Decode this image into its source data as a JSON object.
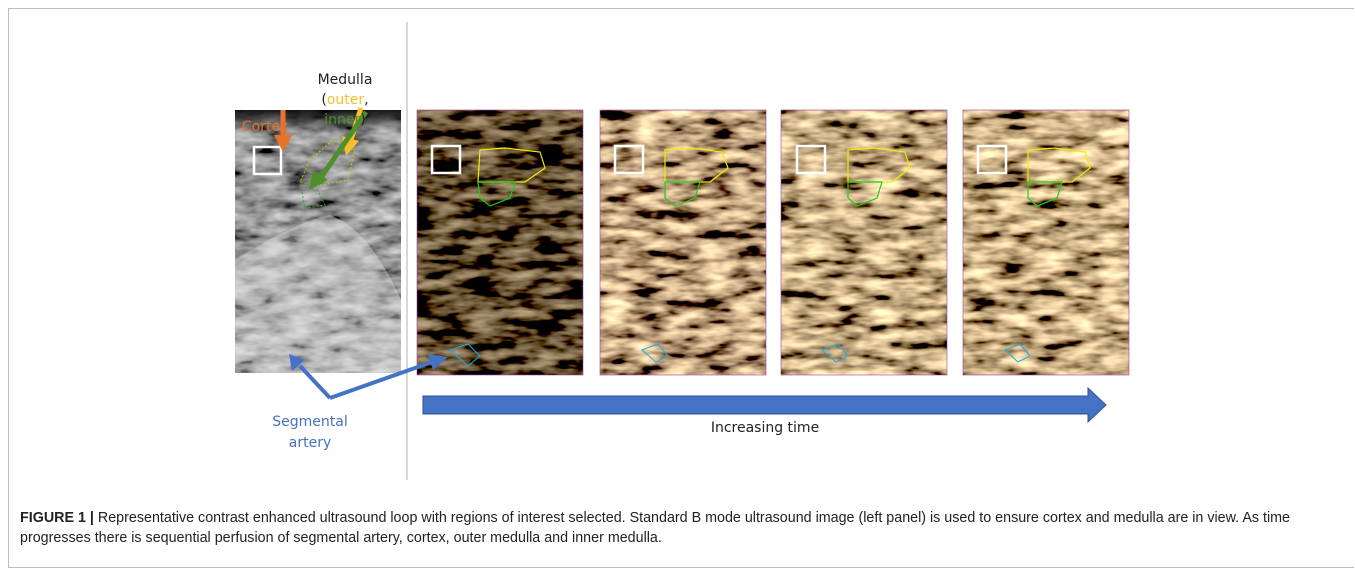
{
  "figure": {
    "labels": {
      "medulla": "Medulla",
      "open_paren": "(",
      "outer": "outer",
      "comma": ",",
      "inner": "inner",
      "close_paren": ")",
      "cortex": "Cortex",
      "segmental": "Segmental",
      "artery": "artery",
      "time": "Increasing time"
    }
  },
  "caption": {
    "label": "FIGURE 1 |",
    "text": "Representative contrast enhanced ultrasound loop with regions of interest selected. Standard B mode ultrasound image (left panel) is used to ensure cortex and medulla are in view. As time progresses there is sequential perfusion of segmental artery, cortex, outer medulla and inner medulla."
  }
}
